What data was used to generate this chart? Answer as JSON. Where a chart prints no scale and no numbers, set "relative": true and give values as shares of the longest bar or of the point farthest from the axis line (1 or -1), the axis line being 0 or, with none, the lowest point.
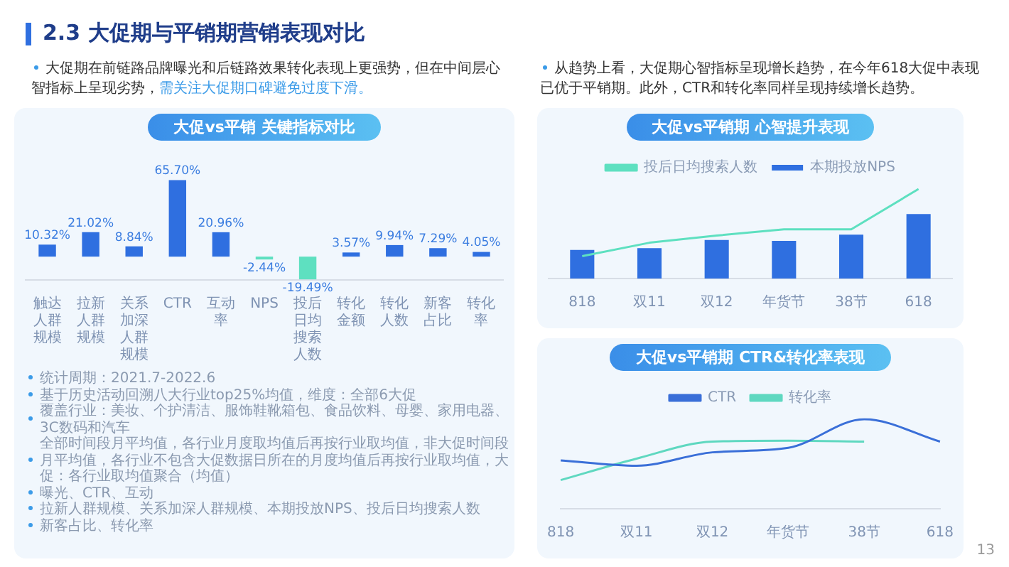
{
  "chart_data": [
    {
      "type": "bar",
      "title": "大促vs平销 关键指标对比",
      "categories": [
        "触达人群规模",
        "拉新人群规模",
        "关系加深人群规模",
        "CTR",
        "互动率",
        "NPS",
        "投后日均搜索人数",
        "转化金额",
        "转化人数",
        "新客占比",
        "转化率"
      ],
      "values": [
        10.32,
        21.02,
        8.84,
        65.7,
        20.96,
        -2.44,
        -19.49,
        3.57,
        9.94,
        7.29,
        4.05
      ],
      "value_labels": [
        "10.32%",
        "21.02%",
        "8.84%",
        "65.70%",
        "20.96%",
        "-2.44%",
        "-19.49%",
        "3.57%",
        "9.94%",
        "7.29%",
        "4.05%"
      ],
      "colors": [
        "#2f6fe0",
        "#2f6fe0",
        "#2f6fe0",
        "#2f6fe0",
        "#2f6fe0",
        "#5ee0c0",
        "#5ee0c0",
        "#2f6fe0",
        "#2f6fe0",
        "#2f6fe0",
        "#2f6fe0"
      ],
      "tick_labels": "x",
      "annotations": [
        "2.3 大促期与平销期营销表现对比",
        "大促期在前链路品牌曝光和后链路效果转化表现上更强势，但在中间层心智指标上呈现劣势，",
        "需关注大促期口碑避免过度下滑。",
        "统计周期：2021.7-2022.6",
        "基于历史活动回溯八大行业top25%均值，维度：全部6大促",
        "覆盖行业：美妆、个护清洁、服饰鞋靴箱包、食品饮料、母婴、家用电器、3C数码和汽车",
        "全部时间段月平均值，各行业月度取均值后再按行业取均值，非大促时间段月平均值，各行业不包含大促数据日所在的月度均值后再按行业取均值，大促：各行业取均值聚合（均值）",
        "曝光、CTR、互动",
        "拉新人群规模、关系加深人群规模、本期投放NPS、投后日均搜索人数",
        "新客占比、转化率",
        "13"
      ]
    },
    {
      "type": "bar",
      "title": "大促vs平销期 心智提升表现",
      "relative": true,
      "legend": "top",
      "categories": [
        "818",
        "双11",
        "双12",
        "年货节",
        "38节",
        "618"
      ],
      "annotations": [
        "从趋势上看，大促期心智指标呈现增长趋势，在今年618大促中表现已优于平销期。此外，CTR和转化率同样呈现持续增长趋势。"
      ],
      "series": [
        {
          "name": "本期投放NPS",
          "type": "bar",
          "color": "#2f6fe0",
          "values": [
            0.32,
            0.34,
            0.43,
            0.42,
            0.49,
            0.72
          ]
        },
        {
          "name": "投后日均搜索人数",
          "type": "line",
          "color": "#5ee0c0",
          "values": [
            0.25,
            0.4,
            0.48,
            0.55,
            0.55,
            1
          ]
        }
      ]
    },
    {
      "type": "line",
      "title": "大促vs平销期 CTR&转化率表现",
      "relative": true,
      "legend": "top",
      "categories": [
        "818",
        "双11",
        "双12",
        "年货节",
        "38节",
        "618"
      ],
      "series": [
        {
          "name": "CTR",
          "color": "#3a6fd8",
          "values": [
            0.54,
            0.48,
            0.63,
            0.68,
            1,
            0.75
          ]
        },
        {
          "name": "转化率",
          "color": "#5fd8c0",
          "values": [
            0.32,
            0.56,
            0.75,
            0.76,
            0.75,
            null
          ]
        }
      ]
    }
  ]
}
